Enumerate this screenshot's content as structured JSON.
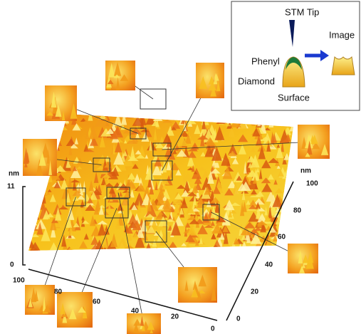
{
  "inset": {
    "labels": {
      "tip": "STM Tip",
      "image": "Image",
      "molecule": "Phenyl",
      "material": "Diamond",
      "surface": "Surface"
    }
  },
  "z_axis": {
    "unit": "nm",
    "ticks": [
      "11",
      "0"
    ]
  },
  "x_axis": {
    "ticks": [
      "100",
      "80",
      "60",
      "40",
      "20",
      "0"
    ]
  },
  "y_axis": {
    "unit": "nm",
    "ticks": [
      "0",
      "20",
      "40",
      "60",
      "80",
      "100"
    ]
  }
}
